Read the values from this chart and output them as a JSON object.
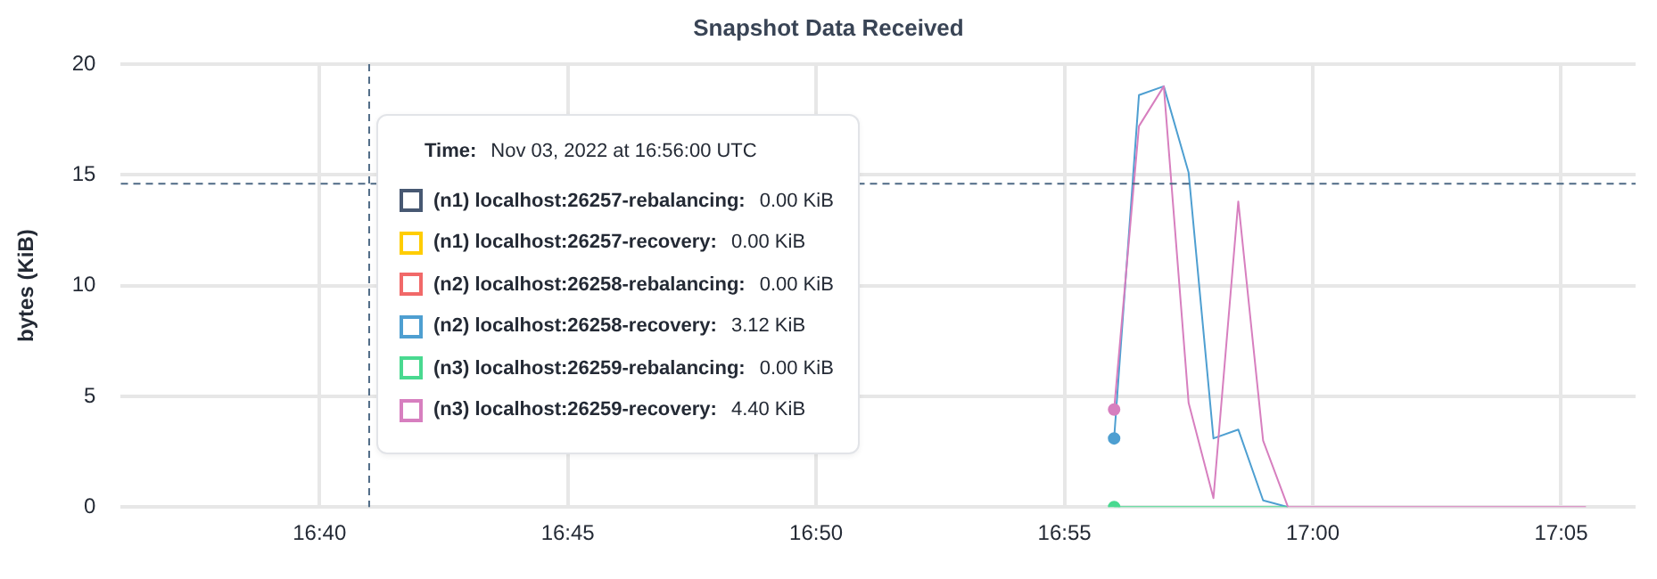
{
  "chart_data": {
    "type": "line",
    "title": "Snapshot Data Received",
    "ylabel": "bytes (KiB)",
    "x": [
      "2022-11-03T16:56:00",
      "2022-11-03T16:56:30",
      "2022-11-03T16:57:00",
      "2022-11-03T16:57:30",
      "2022-11-03T16:58:00",
      "2022-11-03T16:58:30",
      "2022-11-03T16:59:00",
      "2022-11-03T16:59:30",
      "2022-11-03T17:00:00",
      "2022-11-03T17:00:30",
      "2022-11-03T17:01:00",
      "2022-11-03T17:01:30",
      "2022-11-03T17:02:00",
      "2022-11-03T17:02:30",
      "2022-11-03T17:03:00",
      "2022-11-03T17:03:30",
      "2022-11-03T17:04:00",
      "2022-11-03T17:04:30",
      "2022-11-03T17:05:00",
      "2022-11-03T17:05:30"
    ],
    "series": [
      {
        "name": "(n1) localhost:26257-rebalancing:",
        "color": "#475872",
        "values": [
          null,
          null,
          null,
          null,
          null,
          null,
          null,
          null,
          null,
          null,
          null,
          null,
          null,
          null,
          null,
          null,
          null,
          null,
          null,
          null
        ]
      },
      {
        "name": "(n1) localhost:26257-recovery:",
        "color": "#ffcd02",
        "values": [
          null,
          null,
          null,
          null,
          null,
          null,
          null,
          null,
          null,
          null,
          null,
          null,
          null,
          null,
          null,
          null,
          null,
          null,
          null,
          null
        ]
      },
      {
        "name": "(n2) localhost:26258-rebalancing:",
        "color": "#f16969",
        "values": [
          null,
          null,
          null,
          null,
          null,
          null,
          null,
          null,
          null,
          null,
          null,
          null,
          null,
          null,
          null,
          null,
          null,
          null,
          null,
          null
        ]
      },
      {
        "name": "(n2) localhost:26258-recovery:",
        "color": "#4e9fd1",
        "values": [
          3.1,
          18.6,
          19.0,
          15.1,
          3.1,
          3.5,
          0.3,
          0,
          null,
          null,
          null,
          null,
          null,
          null,
          null,
          null,
          null,
          null,
          null,
          null
        ]
      },
      {
        "name": "(n3) localhost:26259-rebalancing:",
        "color": "#49d990",
        "values": [
          0,
          0,
          0,
          0,
          0,
          0,
          0,
          0,
          null,
          null,
          null,
          null,
          null,
          null,
          null,
          null,
          null,
          null,
          null,
          null
        ]
      },
      {
        "name": "(n3) localhost:26259-recovery:",
        "color": "#d77fbf",
        "values": [
          4.4,
          17.2,
          19.0,
          4.7,
          0.4,
          13.8,
          3.0,
          0,
          0,
          0,
          0,
          0,
          0,
          0,
          0,
          0,
          0,
          0,
          0,
          0
        ]
      }
    ],
    "xlim": [
      "2022-11-03T16:36:00",
      "2022-11-03T17:06:30"
    ],
    "xticks": [
      {
        "value": "2022-11-03T16:40:00",
        "label": "16:40"
      },
      {
        "value": "2022-11-03T16:45:00",
        "label": "16:45"
      },
      {
        "value": "2022-11-03T16:50:00",
        "label": "16:50"
      },
      {
        "value": "2022-11-03T16:55:00",
        "label": "16:55"
      },
      {
        "value": "2022-11-03T17:00:00",
        "label": "17:00"
      },
      {
        "value": "2022-11-03T17:05:00",
        "label": "17:05"
      }
    ],
    "ylim": [
      0,
      20
    ],
    "yticks": [
      0,
      5,
      10,
      15,
      20
    ],
    "grid": true,
    "ref_lines": [
      {
        "axis": "x",
        "value": "2022-11-03T16:41:00",
        "color": "#4e6a85",
        "line_style": "dashed"
      },
      {
        "axis": "y",
        "value": 14.6,
        "color": "#4e6a85",
        "line_style": "dashed"
      }
    ],
    "legend": "left",
    "legend_title": "Time:",
    "annotations": [
      "Nov 03, 2022 at 16:56:00 UTC",
      "0.00 KiB",
      "0.00 KiB",
      "0.00 KiB",
      "3.12 KiB",
      "0.00 KiB",
      "4.40 KiB"
    ]
  }
}
